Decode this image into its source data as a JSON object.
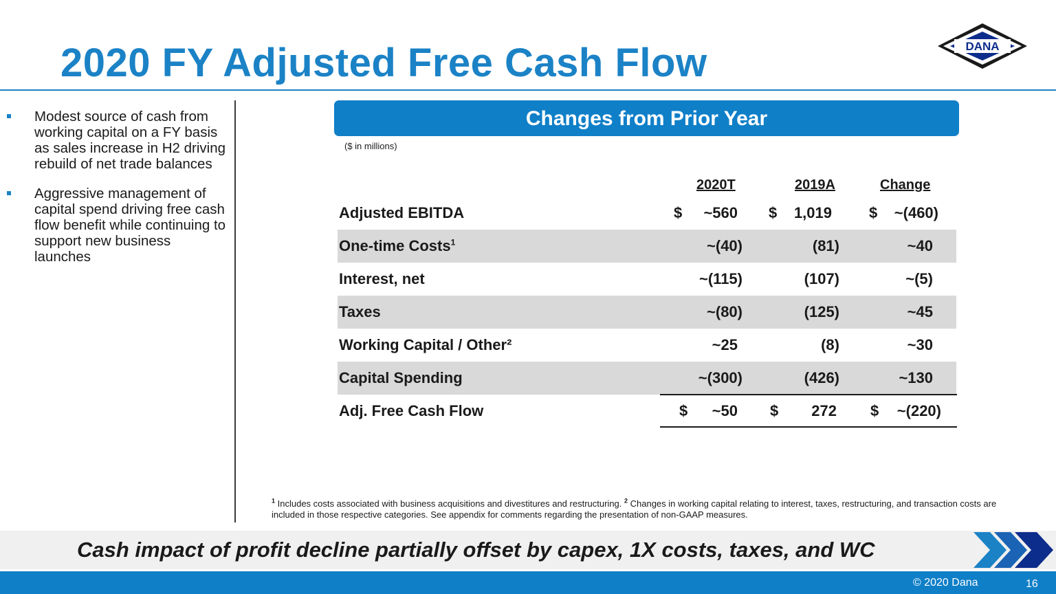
{
  "slide": {
    "title": "2020 FY Adjusted Free Cash Flow",
    "logo_text": "DANA"
  },
  "bullets": [
    "Modest source of cash from working capital on a FY basis as sales increase in H2 driving rebuild of net trade balances",
    "Aggressive management of capital spend driving free cash flow benefit while continuing to support new business launches"
  ],
  "table": {
    "header": "Changes from Prior Year",
    "units_note": "($ in millions)",
    "columns": [
      "2020T",
      "2019A",
      "Change"
    ],
    "rows": [
      {
        "label": "Adjusted EBITDA",
        "sup": "",
        "values": [
          "~560",
          "1,019",
          "~(460)"
        ],
        "dollar": true,
        "shaded": false
      },
      {
        "label": "One-time Costs",
        "sup": "1",
        "values": [
          "~(40)",
          "(81)",
          "~40"
        ],
        "dollar": false,
        "shaded": true
      },
      {
        "label": "Interest, net",
        "sup": "",
        "values": [
          "~(115)",
          "(107)",
          "~(5)"
        ],
        "dollar": false,
        "shaded": false
      },
      {
        "label": "Taxes",
        "sup": "",
        "values": [
          "~(80)",
          "(125)",
          "~45"
        ],
        "dollar": false,
        "shaded": true
      },
      {
        "label": "Working Capital / Other²",
        "sup": "",
        "values": [
          "~25",
          "(8)",
          "~30"
        ],
        "dollar": false,
        "shaded": false
      },
      {
        "label": "Capital Spending",
        "sup": "",
        "values": [
          "~(300)",
          "(426)",
          "~130"
        ],
        "dollar": false,
        "shaded": true
      },
      {
        "label": "Adj. Free Cash Flow",
        "sup": "",
        "values": [
          "~50",
          "272",
          "~(220)"
        ],
        "dollar": true,
        "shaded": false
      }
    ],
    "currency_symbol": "$"
  },
  "footnote": {
    "n1": "1",
    "text1": " Includes costs associated with business acquisitions and divestitures and restructuring. ",
    "n2": "2",
    "text2": " Changes in working capital relating to interest, taxes, restructuring, and transaction costs are included in those respective categories.  See appendix for comments regarding the presentation of non-GAAP measures."
  },
  "takeaway": "Cash impact of profit decline partially offset by capex, 1X costs, taxes, and WC",
  "footer": {
    "copyright": "© 2020 Dana",
    "page_number": "16"
  },
  "colors": {
    "brand_blue": "#1b82c6",
    "bar_blue": "#0f7fc8",
    "navy": "#0d2d8c",
    "row_shade": "#d9d9d9"
  }
}
